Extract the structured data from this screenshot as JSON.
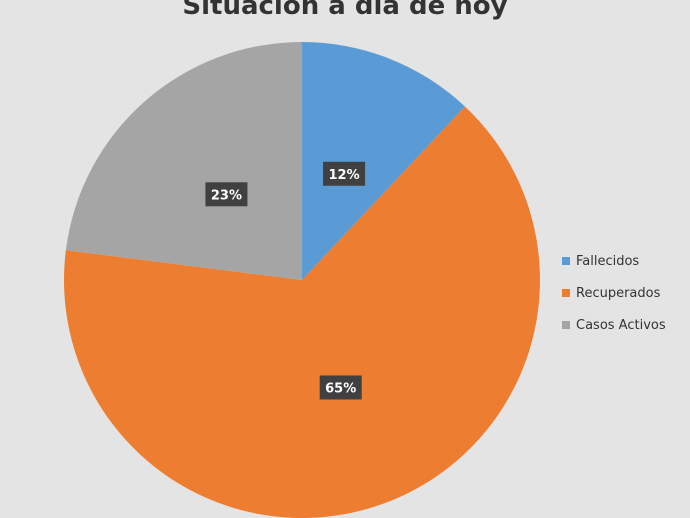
{
  "chart_data": {
    "type": "pie",
    "title": "Situación a día de hoy",
    "categories": [
      "Fallecidos",
      "Recuperados",
      "Casos Activos"
    ],
    "values": [
      12,
      65,
      23
    ],
    "data_labels": [
      "12%",
      "65%",
      "23%"
    ],
    "colors": [
      "#5b9bd5",
      "#ed7d31",
      "#a5a5a5"
    ],
    "legend": "right"
  }
}
